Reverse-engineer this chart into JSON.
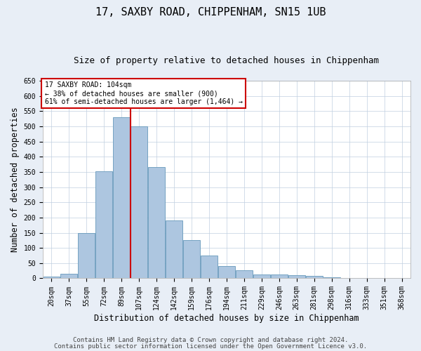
{
  "title": "17, SAXBY ROAD, CHIPPENHAM, SN15 1UB",
  "subtitle": "Size of property relative to detached houses in Chippenham",
  "xlabel": "Distribution of detached houses by size in Chippenham",
  "ylabel": "Number of detached properties",
  "categories": [
    "20sqm",
    "37sqm",
    "55sqm",
    "72sqm",
    "89sqm",
    "107sqm",
    "124sqm",
    "142sqm",
    "159sqm",
    "176sqm",
    "194sqm",
    "211sqm",
    "229sqm",
    "246sqm",
    "263sqm",
    "281sqm",
    "298sqm",
    "316sqm",
    "333sqm",
    "351sqm",
    "368sqm"
  ],
  "values": [
    5,
    15,
    150,
    352,
    530,
    500,
    365,
    190,
    125,
    75,
    40,
    27,
    12,
    12,
    10,
    7,
    3,
    1,
    1,
    0,
    0
  ],
  "bar_color": "#adc6e0",
  "bar_edge_color": "#6699bb",
  "ylim": [
    0,
    650
  ],
  "yticks": [
    0,
    50,
    100,
    150,
    200,
    250,
    300,
    350,
    400,
    450,
    500,
    550,
    600,
    650
  ],
  "property_bin_index": 5,
  "vline_color": "#cc0000",
  "annotation_title": "17 SAXBY ROAD: 104sqm",
  "annotation_line1": "← 38% of detached houses are smaller (900)",
  "annotation_line2": "61% of semi-detached houses are larger (1,464) →",
  "annotation_box_color": "#ffffff",
  "annotation_box_edge": "#cc0000",
  "footer1": "Contains HM Land Registry data © Crown copyright and database right 2024.",
  "footer2": "Contains public sector information licensed under the Open Government Licence v3.0.",
  "bg_color": "#e8eef6",
  "plot_bg_color": "#ffffff",
  "grid_color": "#c0cfe0",
  "title_fontsize": 11,
  "subtitle_fontsize": 9,
  "label_fontsize": 8.5,
  "tick_fontsize": 7,
  "annotation_fontsize": 7,
  "footer_fontsize": 6.5
}
